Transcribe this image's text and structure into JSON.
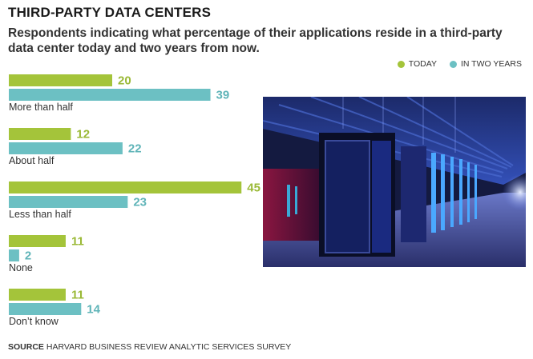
{
  "title": "THIRD-PARTY DATA CENTERS",
  "subtitle": "Respondents indicating what percentage of their applications reside in a third-party data center today and two years from now.",
  "source": {
    "label": "SOURCE",
    "text": "HARVARD BUSINESS REVIEW ANALYTIC SERVICES SURVEY"
  },
  "colors": {
    "today": "#a4c43a",
    "future": "#6cc0c3",
    "value_today": "#9ab936",
    "value_future": "#5fb4b8"
  },
  "chart_data": {
    "type": "bar",
    "orientation": "horizontal",
    "categories": [
      "More than half",
      "About half",
      "Less than half",
      "None",
      "Don’t know"
    ],
    "series": [
      {
        "name": "TODAY",
        "values": [
          20,
          12,
          45,
          11,
          11
        ]
      },
      {
        "name": "IN TWO YEARS",
        "values": [
          39,
          22,
          23,
          2,
          14
        ]
      }
    ],
    "legend_position": "top-right",
    "grid": false
  }
}
